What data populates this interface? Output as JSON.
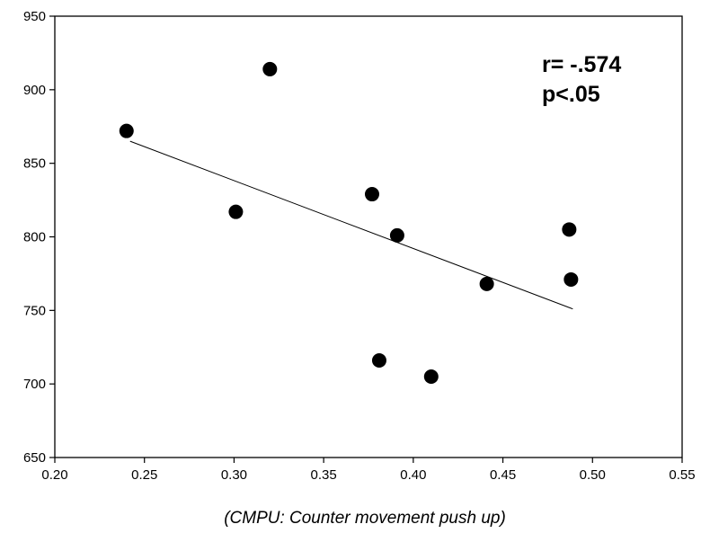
{
  "chart_data": {
    "type": "scatter",
    "title": "",
    "xlabel": "(CMPU: Counter movement push up)",
    "ylabel": "",
    "xlim": [
      0.2,
      0.55
    ],
    "ylim": [
      650,
      950
    ],
    "x_ticks": [
      "0.20",
      "0.25",
      "0.30",
      "0.35",
      "0.40",
      "0.45",
      "0.50",
      "0.55"
    ],
    "y_ticks": [
      "650",
      "700",
      "750",
      "800",
      "850",
      "900",
      "950"
    ],
    "grid": false,
    "points": [
      {
        "x": 0.24,
        "y": 872
      },
      {
        "x": 0.301,
        "y": 817
      },
      {
        "x": 0.32,
        "y": 914
      },
      {
        "x": 0.377,
        "y": 829
      },
      {
        "x": 0.381,
        "y": 716
      },
      {
        "x": 0.391,
        "y": 801
      },
      {
        "x": 0.41,
        "y": 705
      },
      {
        "x": 0.441,
        "y": 768
      },
      {
        "x": 0.487,
        "y": 805
      },
      {
        "x": 0.488,
        "y": 771
      }
    ],
    "trendline": {
      "x": [
        0.242,
        0.489
      ],
      "y": [
        865,
        751
      ]
    },
    "annotations": [
      "r= -.574",
      "p<.05"
    ]
  }
}
